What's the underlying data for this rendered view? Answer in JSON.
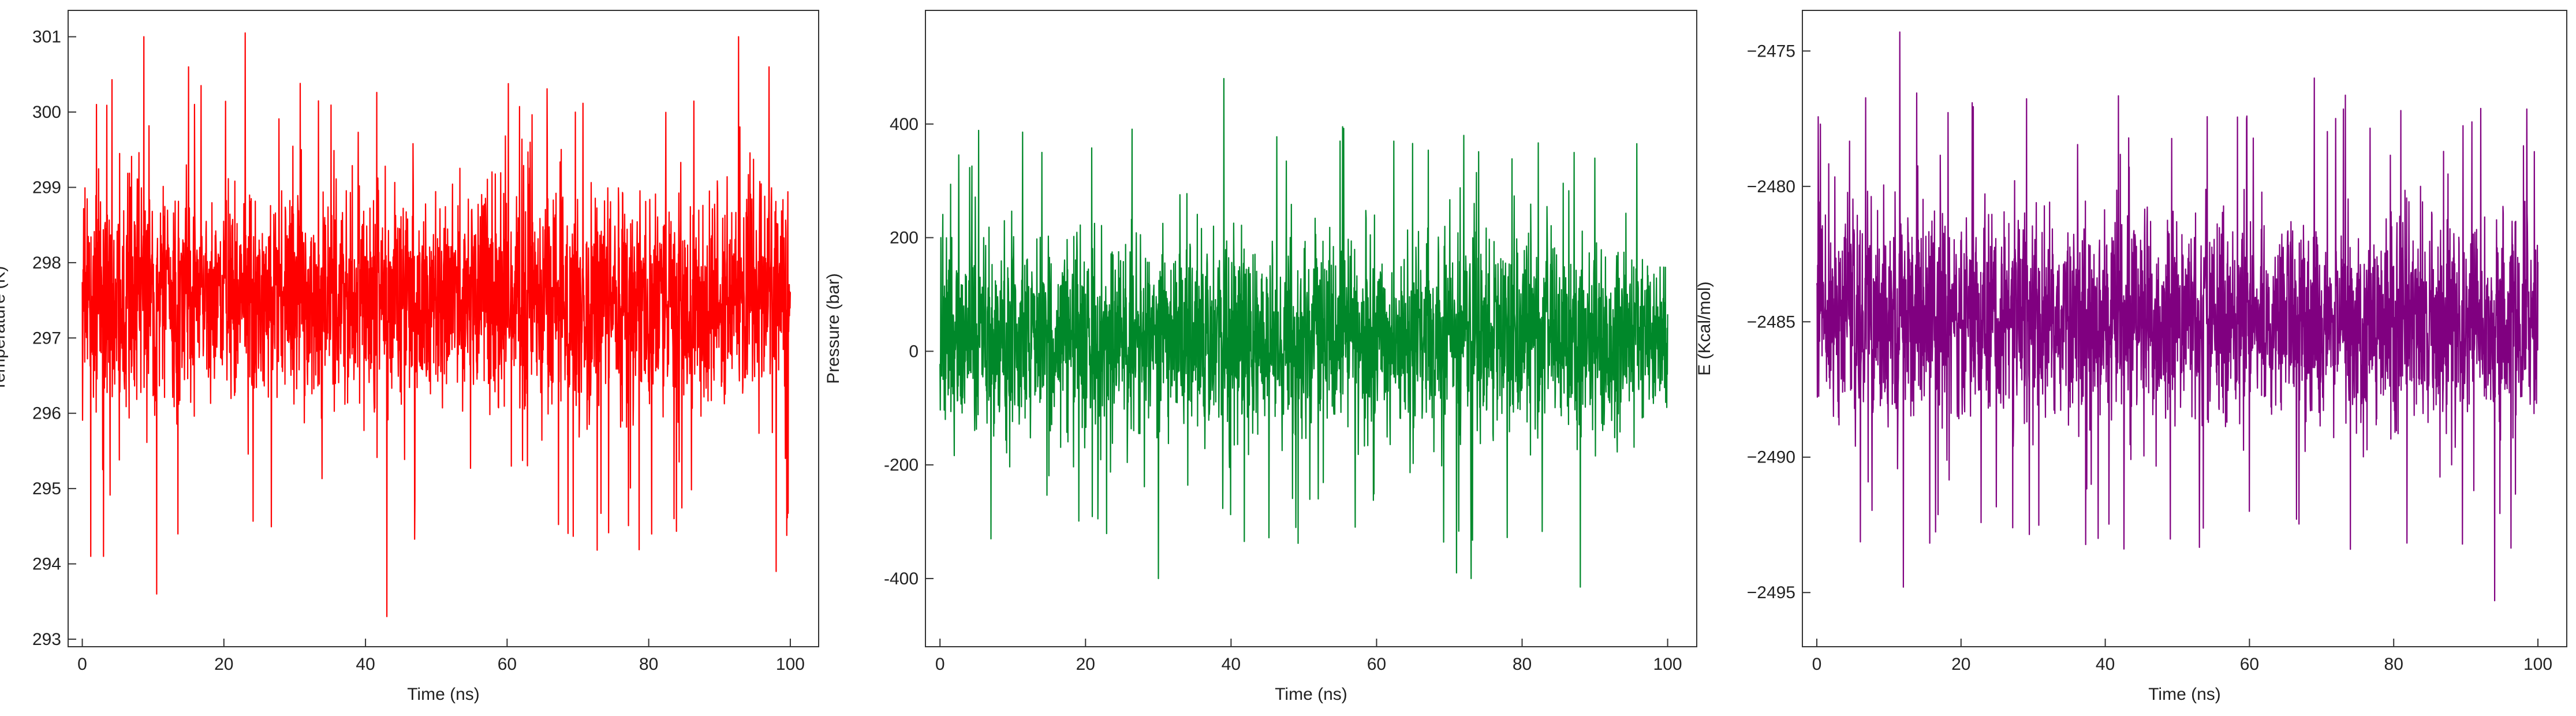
{
  "chart_data": [
    {
      "type": "line",
      "xlabel": "Time (ns)",
      "ylabel": "Temperature (K)",
      "xlim": [
        -2,
        104
      ],
      "ylim": [
        292.9,
        301.35
      ],
      "x_ticks": [
        0,
        20,
        40,
        60,
        80,
        100
      ],
      "y_ticks": [
        293,
        294,
        295,
        296,
        297,
        298,
        299,
        300,
        301
      ],
      "x_tick_labels": [
        "0",
        "20",
        "40",
        "60",
        "80",
        "100"
      ],
      "y_tick_labels": [
        "293",
        "294",
        "295",
        "296",
        "297",
        "298",
        "299",
        "300",
        "301"
      ],
      "color": "#ff0000",
      "grid": false,
      "series": [
        {
          "mean": 297.5,
          "band_low": 296.0,
          "band_high": 299.0,
          "min": 293.3,
          "max": 301.05,
          "x_range": [
            0,
            100
          ],
          "peaks": [
            {
              "x": 8.7,
              "y": 301.0
            },
            {
              "x": 23.0,
              "y": 301.05
            },
            {
              "x": 92.7,
              "y": 301.0
            },
            {
              "x": 15.0,
              "y": 300.6
            },
            {
              "x": 2.0,
              "y": 300.1
            },
            {
              "x": 97.0,
              "y": 300.6
            }
          ],
          "troughs": [
            {
              "x": 10.5,
              "y": 293.6
            },
            {
              "x": 43.0,
              "y": 293.3
            },
            {
              "x": 1.2,
              "y": 294.1
            },
            {
              "x": 3.0,
              "y": 294.1
            },
            {
              "x": 98.0,
              "y": 293.9
            }
          ]
        }
      ]
    },
    {
      "type": "line",
      "xlabel": "Time (ns)",
      "ylabel": "Pressure (bar)",
      "xlim": [
        -2,
        104
      ],
      "ylim": [
        -520,
        600
      ],
      "x_ticks": [
        0,
        20,
        40,
        60,
        80,
        100
      ],
      "y_ticks": [
        -400,
        -200,
        0,
        200,
        400
      ],
      "x_tick_labels": [
        "0",
        "20",
        "40",
        "60",
        "80",
        "100"
      ],
      "y_tick_labels": [
        "-400",
        "-200",
        "0",
        "200",
        "400"
      ],
      "color": "#00882a",
      "grid": false,
      "series": [
        {
          "mean": 0,
          "band_low": -150,
          "band_high": 200,
          "min": -420,
          "max": 480,
          "x_range": [
            0,
            100
          ],
          "peaks": [
            {
              "x": 39.0,
              "y": 480
            },
            {
              "x": 14.0,
              "y": 350
            },
            {
              "x": 55.0,
              "y": 370
            },
            {
              "x": 72.0,
              "y": 380
            },
            {
              "x": 90.0,
              "y": 340
            }
          ],
          "troughs": [
            {
              "x": 30.0,
              "y": -400
            },
            {
              "x": 73.0,
              "y": -400
            },
            {
              "x": 88.0,
              "y": -415
            },
            {
              "x": 71.0,
              "y": -390
            },
            {
              "x": 7.0,
              "y": -330
            }
          ]
        }
      ]
    },
    {
      "type": "line",
      "xlabel": "Time (ns)",
      "ylabel": "E (Kcal/mol)",
      "xlim": [
        -2,
        104
      ],
      "ylim": [
        -2497,
        -2473.5
      ],
      "x_ticks": [
        0,
        20,
        40,
        60,
        80,
        100
      ],
      "y_ticks": [
        -2495,
        -2490,
        -2485,
        -2480,
        -2475
      ],
      "x_tick_labels": [
        "0",
        "20",
        "40",
        "60",
        "80",
        "100"
      ],
      "y_tick_labels": [
        "−2495",
        "−2490",
        "−2485",
        "−2480",
        "−2475"
      ],
      "color": "#800080",
      "grid": false,
      "series": [
        {
          "mean": -2485,
          "band_low": -2489,
          "band_high": -2481,
          "min": -2495.3,
          "max": -2474.3,
          "x_range": [
            0,
            100
          ],
          "peaks": [
            {
              "x": 11.5,
              "y": -2474.3
            },
            {
              "x": 69.0,
              "y": -2476
            },
            {
              "x": 81.0,
              "y": -2477.2
            },
            {
              "x": 0.5,
              "y": -2477.7
            },
            {
              "x": 98.0,
              "y": -2478.5
            }
          ],
          "troughs": [
            {
              "x": 12.0,
              "y": -2494.8
            },
            {
              "x": 94.0,
              "y": -2495.3
            },
            {
              "x": 39.0,
              "y": -2493.0
            },
            {
              "x": 74.0,
              "y": -2493.4
            },
            {
              "x": 60.0,
              "y": -2492.0
            }
          ]
        }
      ]
    }
  ]
}
